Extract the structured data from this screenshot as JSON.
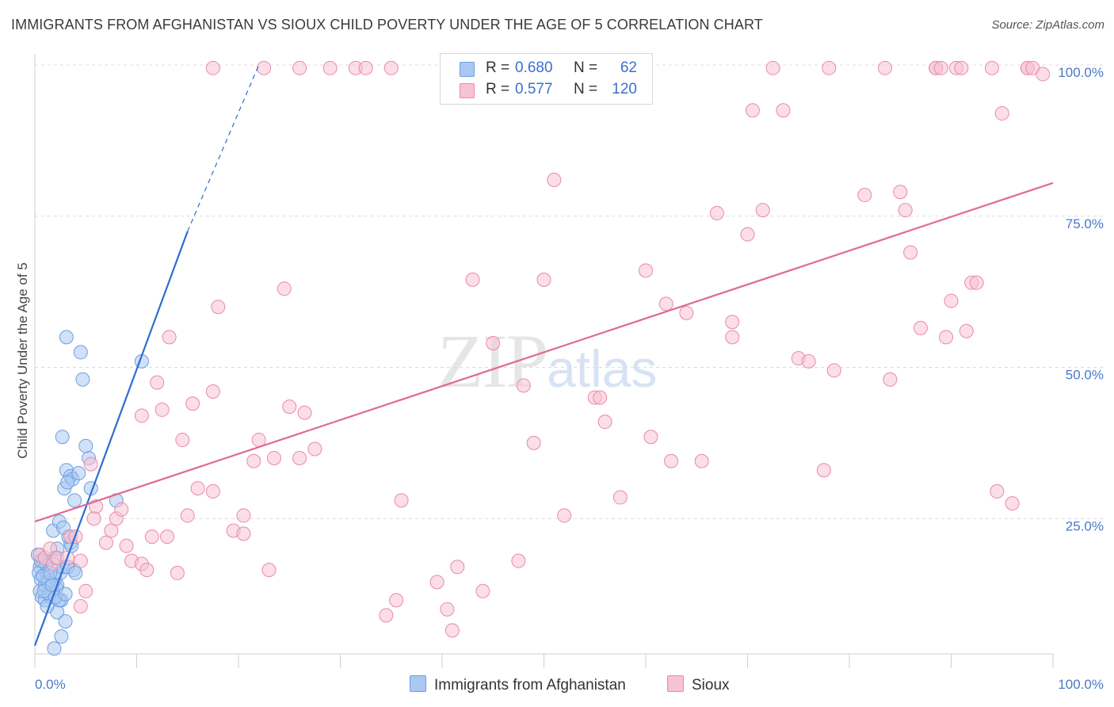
{
  "title": "IMMIGRANTS FROM AFGHANISTAN VS SIOUX CHILD POVERTY UNDER THE AGE OF 5 CORRELATION CHART",
  "source": "Source: ZipAtlas.com",
  "watermark": {
    "zip": "ZIP",
    "atlas": "atlas"
  },
  "legend": {
    "rows": [
      {
        "r_label": "R =",
        "r_value": "0.680",
        "n_label": "N =",
        "n_value": "62",
        "color": "#a9c8f2",
        "border": "#6f9ee0"
      },
      {
        "r_label": "R =",
        "r_value": "0.577",
        "n_label": "N =",
        "n_value": "120",
        "color": "#f7c3d3",
        "border": "#e98aa8"
      }
    ]
  },
  "bottom_legend": [
    {
      "label": "Immigrants from Afghanistan",
      "color": "#a9c8f2",
      "border": "#6f9ee0"
    },
    {
      "label": "Sioux",
      "color": "#f7c3d3",
      "border": "#e98aa8"
    }
  ],
  "chart_data": {
    "type": "scatter",
    "title": "IMMIGRANTS FROM AFGHANISTAN VS SIOUX CHILD POVERTY UNDER THE AGE OF 5 CORRELATION CHART",
    "xlabel": "",
    "ylabel": "Child Poverty Under the Age of 5",
    "xlim": [
      0,
      100
    ],
    "ylim": [
      0,
      104
    ],
    "x_tick_labels": [
      "0.0%",
      "100.0%"
    ],
    "y_tick_labels": [
      "25.0%",
      "50.0%",
      "75.0%",
      "100.0%"
    ],
    "y_ticks": [
      25,
      50,
      75,
      100
    ],
    "grid": "horizontal dashed",
    "legend_position": "top-center",
    "series": [
      {
        "name": "Immigrants from Afghanistan",
        "color": "#a9c8f2",
        "edge": "#6f9ee0",
        "line_color": "#2a6fd1",
        "trend": {
          "x0": 0,
          "y0": 4,
          "x1": 15,
          "y1": 72.5,
          "dash_to_x": 22,
          "dash_to_y": 100
        },
        "points": [
          [
            0.3,
            19
          ],
          [
            0.5,
            17
          ],
          [
            0.4,
            16
          ],
          [
            0.6,
            15
          ],
          [
            0.8,
            18
          ],
          [
            0.5,
            13
          ],
          [
            0.7,
            12
          ],
          [
            1.0,
            14
          ],
          [
            1.2,
            16
          ],
          [
            1.5,
            17
          ],
          [
            1.0,
            11.5
          ],
          [
            1.8,
            13
          ],
          [
            2.0,
            15
          ],
          [
            2.2,
            14
          ],
          [
            1.6,
            12
          ],
          [
            1.4,
            12.5
          ],
          [
            2.5,
            16
          ],
          [
            2.8,
            17
          ],
          [
            2.1,
            13.5
          ],
          [
            1.3,
            14.5
          ],
          [
            0.9,
            13
          ],
          [
            0.8,
            15.5
          ],
          [
            1.1,
            17.5
          ],
          [
            2.6,
            11.5
          ],
          [
            2.2,
            9.5
          ],
          [
            1.9,
            3.5
          ],
          [
            2.6,
            5.5
          ],
          [
            3.0,
            8
          ],
          [
            2.4,
            11.5
          ],
          [
            1.7,
            14
          ],
          [
            1.8,
            23
          ],
          [
            2.4,
            24.5
          ],
          [
            2.2,
            20
          ],
          [
            3.5,
            21
          ],
          [
            3.8,
            16.5
          ],
          [
            3.2,
            17
          ],
          [
            4.0,
            16
          ],
          [
            3.6,
            20.5
          ],
          [
            3.3,
            22
          ],
          [
            2.8,
            23.5
          ],
          [
            2.9,
            30
          ],
          [
            3.1,
            33
          ],
          [
            3.5,
            32
          ],
          [
            3.9,
            28
          ],
          [
            3.7,
            31.5
          ],
          [
            4.3,
            32.5
          ],
          [
            3.2,
            31
          ],
          [
            5.5,
            30
          ],
          [
            8.0,
            28
          ],
          [
            5.3,
            35
          ],
          [
            5.0,
            37
          ],
          [
            2.7,
            38.5
          ],
          [
            3.1,
            55
          ],
          [
            4.5,
            52.5
          ],
          [
            4.7,
            48
          ],
          [
            10.5,
            51
          ],
          [
            2.0,
            18.5
          ],
          [
            0.6,
            18
          ],
          [
            1.5,
            16
          ],
          [
            2.0,
            12
          ],
          [
            1.2,
            10.5
          ],
          [
            3.0,
            12.5
          ]
        ]
      },
      {
        "name": "Sioux",
        "color": "#f7c3d3",
        "edge": "#e98aa8",
        "line_color": "#e06a94",
        "trend": {
          "x0": 0,
          "y0": 24.5,
          "x1": 100,
          "y1": 80.5
        },
        "points": [
          [
            0.5,
            19
          ],
          [
            1.0,
            18.5
          ],
          [
            1.5,
            20
          ],
          [
            1.8,
            17.5
          ],
          [
            2.2,
            18.5
          ],
          [
            3.5,
            22
          ],
          [
            3.2,
            18.5
          ],
          [
            4.0,
            22
          ],
          [
            4.5,
            18
          ],
          [
            5.0,
            13
          ],
          [
            4.5,
            10.5
          ],
          [
            5.5,
            34
          ],
          [
            5.8,
            25
          ],
          [
            6.0,
            27
          ],
          [
            7.0,
            21
          ],
          [
            7.5,
            23
          ],
          [
            8.0,
            25
          ],
          [
            8.5,
            26.5
          ],
          [
            9.0,
            20.5
          ],
          [
            9.5,
            18
          ],
          [
            10.5,
            17.5
          ],
          [
            11.0,
            16.5
          ],
          [
            10.5,
            42
          ],
          [
            11.5,
            22
          ],
          [
            12.0,
            47.5
          ],
          [
            12.5,
            43
          ],
          [
            13.0,
            22
          ],
          [
            13.2,
            55
          ],
          [
            14.0,
            16
          ],
          [
            14.5,
            38
          ],
          [
            15.0,
            25.5
          ],
          [
            15.5,
            44
          ],
          [
            16.0,
            30
          ],
          [
            17.5,
            29.5
          ],
          [
            17.5,
            46
          ],
          [
            18.0,
            60
          ],
          [
            19.5,
            23
          ],
          [
            20.5,
            25.5
          ],
          [
            20.5,
            22.5
          ],
          [
            21.5,
            34.5
          ],
          [
            22.0,
            38
          ],
          [
            23.0,
            16.5
          ],
          [
            23.5,
            35
          ],
          [
            25.0,
            43.5
          ],
          [
            24.5,
            63
          ],
          [
            26.0,
            35
          ],
          [
            26.5,
            42.5
          ],
          [
            27.5,
            36.5
          ],
          [
            29.0,
            99.5
          ],
          [
            26.0,
            99.5
          ],
          [
            17.5,
            99.5
          ],
          [
            22.5,
            99.5
          ],
          [
            31.5,
            99.5
          ],
          [
            32.5,
            99.5
          ],
          [
            34.5,
            9
          ],
          [
            35.0,
            99.5
          ],
          [
            35.5,
            11.5
          ],
          [
            36.0,
            28
          ],
          [
            39.5,
            14.5
          ],
          [
            40.5,
            10
          ],
          [
            41.0,
            6.5
          ],
          [
            41.5,
            17
          ],
          [
            43.0,
            64.5
          ],
          [
            44.0,
            13
          ],
          [
            45.0,
            54
          ],
          [
            47.5,
            18
          ],
          [
            48.0,
            47
          ],
          [
            49.0,
            37.5
          ],
          [
            49.0,
            99.5
          ],
          [
            50.0,
            64.5
          ],
          [
            51.0,
            81
          ],
          [
            52.0,
            25.5
          ],
          [
            55.0,
            45
          ],
          [
            55.5,
            45
          ],
          [
            56.0,
            41
          ],
          [
            57.5,
            28.5
          ],
          [
            60.0,
            66
          ],
          [
            60.5,
            38.5
          ],
          [
            62.0,
            60.5
          ],
          [
            62.5,
            34.5
          ],
          [
            64.0,
            59
          ],
          [
            65.5,
            34.5
          ],
          [
            67.0,
            75.5
          ],
          [
            68.5,
            57.5
          ],
          [
            68.5,
            55
          ],
          [
            70.0,
            72
          ],
          [
            70.5,
            92.5
          ],
          [
            71.5,
            76
          ],
          [
            72.5,
            99.5
          ],
          [
            73.5,
            92.5
          ],
          [
            75.0,
            51.5
          ],
          [
            76.0,
            51
          ],
          [
            78.0,
            99.5
          ],
          [
            78.5,
            49.5
          ],
          [
            77.5,
            33
          ],
          [
            81.5,
            78.5
          ],
          [
            83.5,
            99.5
          ],
          [
            84.0,
            48
          ],
          [
            85.0,
            79
          ],
          [
            85.5,
            76
          ],
          [
            86.0,
            69
          ],
          [
            87.0,
            56.5
          ],
          [
            88.5,
            99.5
          ],
          [
            88.5,
            99.5
          ],
          [
            89.0,
            99.5
          ],
          [
            89.5,
            55
          ],
          [
            90.0,
            61
          ],
          [
            90.5,
            99.5
          ],
          [
            91.0,
            99.5
          ],
          [
            91.5,
            56
          ],
          [
            92.0,
            64
          ],
          [
            92.5,
            64
          ],
          [
            94.0,
            99.5
          ],
          [
            94.5,
            29.5
          ],
          [
            95.0,
            92
          ],
          [
            96.0,
            27.5
          ],
          [
            97.5,
            99.5
          ],
          [
            97.5,
            99.5
          ],
          [
            98.0,
            99.5
          ],
          [
            99.0,
            98.5
          ]
        ]
      }
    ]
  }
}
